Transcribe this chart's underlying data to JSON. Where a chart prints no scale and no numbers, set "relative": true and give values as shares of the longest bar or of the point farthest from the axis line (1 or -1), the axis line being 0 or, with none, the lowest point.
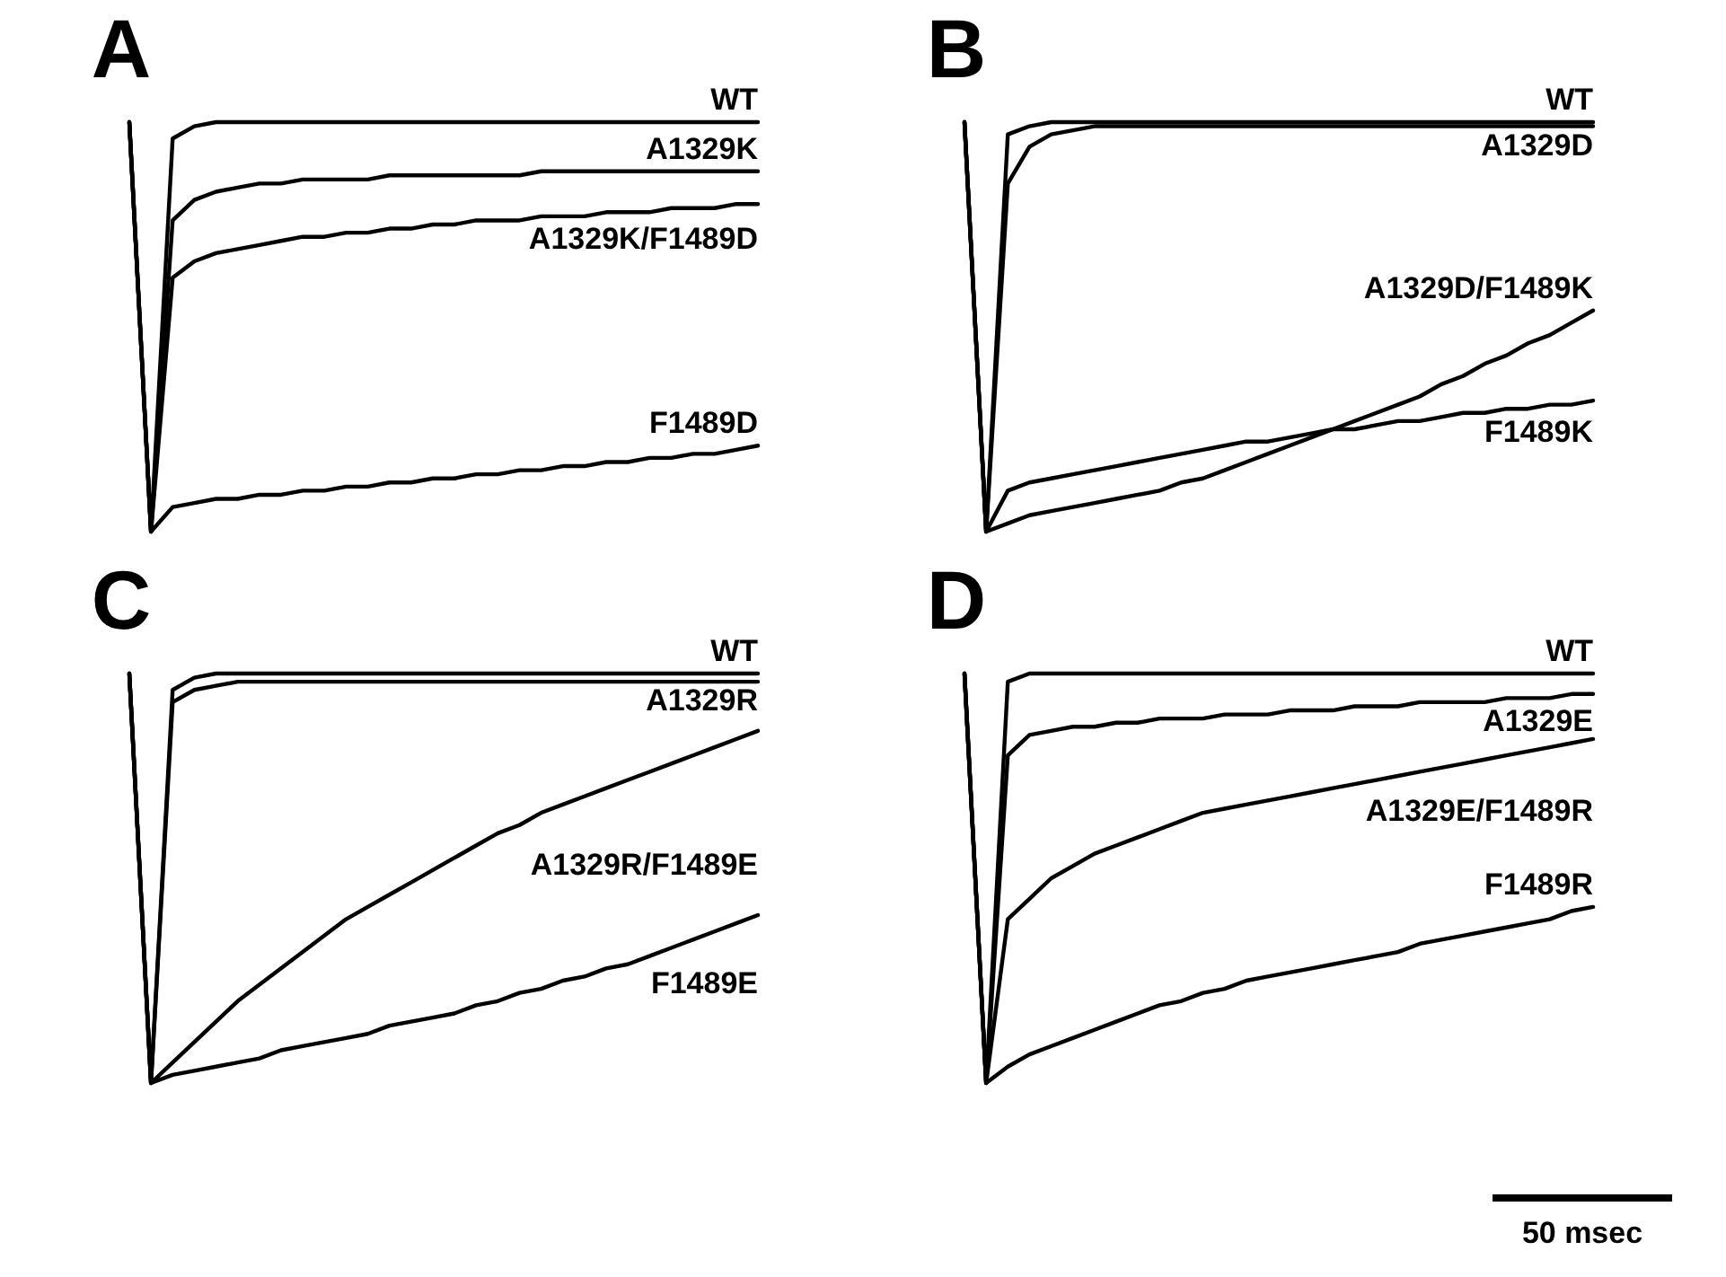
{
  "chart_data": [
    {
      "type": "line",
      "title": "A",
      "relative": true,
      "tick_labels": false,
      "categories": [
        null,
        null,
        null,
        null,
        null,
        null,
        null,
        null,
        null,
        null,
        null,
        null,
        null,
        null,
        null,
        null,
        null,
        null,
        null,
        null,
        null,
        null,
        null,
        null,
        null,
        null,
        null,
        null,
        null,
        null
      ],
      "series": [
        {
          "name": "WT",
          "color": "#000000",
          "values": [
            1,
            0,
            0.96,
            0.99,
            1,
            1,
            1,
            1,
            1,
            1,
            1,
            1,
            1,
            1,
            1,
            1,
            1,
            1,
            1,
            1,
            1,
            1,
            1,
            1,
            1,
            1,
            1,
            1,
            1,
            1
          ]
        },
        {
          "name": "A1329K",
          "color": "#000000",
          "values": [
            1,
            0,
            0.76,
            0.81,
            0.83,
            0.84,
            0.85,
            0.85,
            0.86,
            0.86,
            0.86,
            0.86,
            0.87,
            0.87,
            0.87,
            0.87,
            0.87,
            0.87,
            0.87,
            0.88,
            0.88,
            0.88,
            0.88,
            0.88,
            0.88,
            0.88,
            0.88,
            0.88,
            0.88,
            0.88
          ]
        },
        {
          "name": "A1329K/F1489D",
          "color": "#000000",
          "values": [
            1,
            0,
            0.62,
            0.66,
            0.68,
            0.69,
            0.7,
            0.71,
            0.72,
            0.72,
            0.73,
            0.73,
            0.74,
            0.74,
            0.75,
            0.75,
            0.76,
            0.76,
            0.76,
            0.77,
            0.77,
            0.77,
            0.78,
            0.78,
            0.78,
            0.79,
            0.79,
            0.79,
            0.8,
            0.8
          ]
        },
        {
          "name": "F1489D",
          "color": "#000000",
          "values": [
            1,
            0,
            0.06,
            0.07,
            0.08,
            0.08,
            0.09,
            0.09,
            0.1,
            0.1,
            0.11,
            0.11,
            0.12,
            0.12,
            0.13,
            0.13,
            0.14,
            0.14,
            0.15,
            0.15,
            0.16,
            0.16,
            0.17,
            0.17,
            0.18,
            0.18,
            0.19,
            0.19,
            0.2,
            0.21
          ]
        }
      ]
    },
    {
      "type": "line",
      "title": "B",
      "relative": true,
      "tick_labels": false,
      "categories": [
        null,
        null,
        null,
        null,
        null,
        null,
        null,
        null,
        null,
        null,
        null,
        null,
        null,
        null,
        null,
        null,
        null,
        null,
        null,
        null,
        null,
        null,
        null,
        null,
        null,
        null,
        null,
        null,
        null,
        null
      ],
      "series": [
        {
          "name": "WT",
          "color": "#000000",
          "values": [
            1,
            0,
            0.97,
            0.99,
            1,
            1,
            1,
            1,
            1,
            1,
            1,
            1,
            1,
            1,
            1,
            1,
            1,
            1,
            1,
            1,
            1,
            1,
            1,
            1,
            1,
            1,
            1,
            1,
            1,
            1
          ]
        },
        {
          "name": "A1329D",
          "color": "#000000",
          "values": [
            1,
            0,
            0.85,
            0.94,
            0.97,
            0.98,
            0.99,
            0.99,
            0.99,
            0.99,
            0.99,
            0.99,
            0.99,
            0.99,
            0.99,
            0.99,
            0.99,
            0.99,
            0.99,
            0.99,
            0.99,
            0.99,
            0.99,
            0.99,
            0.99,
            0.99,
            0.99,
            0.99,
            0.99,
            0.99
          ]
        },
        {
          "name": "A1329D/F1489K",
          "color": "#000000",
          "values": [
            1,
            0,
            0.02,
            0.04,
            0.05,
            0.06,
            0.07,
            0.08,
            0.09,
            0.1,
            0.12,
            0.13,
            0.15,
            0.17,
            0.19,
            0.21,
            0.23,
            0.25,
            0.27,
            0.29,
            0.31,
            0.33,
            0.36,
            0.38,
            0.41,
            0.43,
            0.46,
            0.48,
            0.51,
            0.54
          ]
        },
        {
          "name": "F1489K",
          "color": "#000000",
          "values": [
            1,
            0,
            0.1,
            0.12,
            0.13,
            0.14,
            0.15,
            0.16,
            0.17,
            0.18,
            0.19,
            0.2,
            0.21,
            0.22,
            0.22,
            0.23,
            0.24,
            0.25,
            0.25,
            0.26,
            0.27,
            0.27,
            0.28,
            0.29,
            0.29,
            0.3,
            0.3,
            0.31,
            0.31,
            0.32
          ]
        }
      ]
    },
    {
      "type": "line",
      "title": "C",
      "relative": true,
      "tick_labels": false,
      "categories": [
        null,
        null,
        null,
        null,
        null,
        null,
        null,
        null,
        null,
        null,
        null,
        null,
        null,
        null,
        null,
        null,
        null,
        null,
        null,
        null,
        null,
        null,
        null,
        null,
        null,
        null,
        null,
        null,
        null,
        null
      ],
      "series": [
        {
          "name": "WT",
          "color": "#000000",
          "values": [
            1,
            0,
            0.96,
            0.99,
            1,
            1,
            1,
            1,
            1,
            1,
            1,
            1,
            1,
            1,
            1,
            1,
            1,
            1,
            1,
            1,
            1,
            1,
            1,
            1,
            1,
            1,
            1,
            1,
            1,
            1
          ]
        },
        {
          "name": "A1329R",
          "color": "#000000",
          "values": [
            1,
            0,
            0.93,
            0.96,
            0.97,
            0.98,
            0.98,
            0.98,
            0.98,
            0.98,
            0.98,
            0.98,
            0.98,
            0.98,
            0.98,
            0.98,
            0.98,
            0.98,
            0.98,
            0.98,
            0.98,
            0.98,
            0.98,
            0.98,
            0.98,
            0.98,
            0.98,
            0.98,
            0.98,
            0.98
          ]
        },
        {
          "name": "A1329R/F1489E",
          "color": "#000000",
          "values": [
            1,
            0,
            0.05,
            0.1,
            0.15,
            0.2,
            0.24,
            0.28,
            0.32,
            0.36,
            0.4,
            0.43,
            0.46,
            0.49,
            0.52,
            0.55,
            0.58,
            0.61,
            0.63,
            0.66,
            0.68,
            0.7,
            0.72,
            0.74,
            0.76,
            0.78,
            0.8,
            0.82,
            0.84,
            0.86
          ]
        },
        {
          "name": "F1489E",
          "color": "#000000",
          "values": [
            1,
            0,
            0.02,
            0.03,
            0.04,
            0.05,
            0.06,
            0.08,
            0.09,
            0.1,
            0.11,
            0.12,
            0.14,
            0.15,
            0.16,
            0.17,
            0.19,
            0.2,
            0.22,
            0.23,
            0.25,
            0.26,
            0.28,
            0.29,
            0.31,
            0.33,
            0.35,
            0.37,
            0.39,
            0.41
          ]
        }
      ]
    },
    {
      "type": "line",
      "title": "D",
      "relative": true,
      "tick_labels": false,
      "annotations": [
        "50 msec"
      ],
      "categories": [
        null,
        null,
        null,
        null,
        null,
        null,
        null,
        null,
        null,
        null,
        null,
        null,
        null,
        null,
        null,
        null,
        null,
        null,
        null,
        null,
        null,
        null,
        null,
        null,
        null,
        null,
        null,
        null,
        null,
        null
      ],
      "series": [
        {
          "name": "WT",
          "color": "#000000",
          "values": [
            1,
            0,
            0.98,
            1,
            1,
            1,
            1,
            1,
            1,
            1,
            1,
            1,
            1,
            1,
            1,
            1,
            1,
            1,
            1,
            1,
            1,
            1,
            1,
            1,
            1,
            1,
            1,
            1,
            1,
            1
          ]
        },
        {
          "name": "A1329E",
          "color": "#000000",
          "values": [
            1,
            0,
            0.8,
            0.85,
            0.86,
            0.87,
            0.87,
            0.88,
            0.88,
            0.89,
            0.89,
            0.89,
            0.9,
            0.9,
            0.9,
            0.91,
            0.91,
            0.91,
            0.92,
            0.92,
            0.92,
            0.93,
            0.93,
            0.93,
            0.93,
            0.94,
            0.94,
            0.94,
            0.95,
            0.95
          ]
        },
        {
          "name": "A1329E/F1489R",
          "color": "#000000",
          "values": [
            1,
            0,
            0.4,
            0.45,
            0.5,
            0.53,
            0.56,
            0.58,
            0.6,
            0.62,
            0.64,
            0.66,
            0.67,
            0.68,
            0.69,
            0.7,
            0.71,
            0.72,
            0.73,
            0.74,
            0.75,
            0.76,
            0.77,
            0.78,
            0.79,
            0.8,
            0.81,
            0.82,
            0.83,
            0.84
          ]
        },
        {
          "name": "F1489R",
          "color": "#000000",
          "values": [
            1,
            0,
            0.04,
            0.07,
            0.09,
            0.11,
            0.13,
            0.15,
            0.17,
            0.19,
            0.2,
            0.22,
            0.23,
            0.25,
            0.26,
            0.27,
            0.28,
            0.29,
            0.3,
            0.31,
            0.32,
            0.34,
            0.35,
            0.36,
            0.37,
            0.38,
            0.39,
            0.4,
            0.42,
            0.43
          ]
        }
      ]
    }
  ]
}
